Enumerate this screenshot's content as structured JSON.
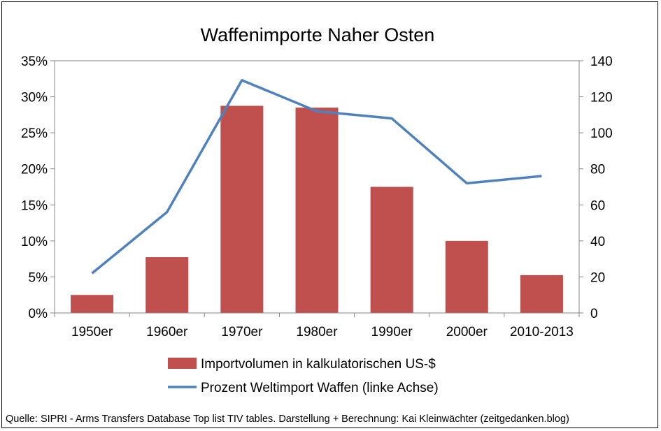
{
  "chart_data": {
    "type": "bar",
    "title": "Waffenimporte Naher Osten",
    "categories": [
      "1950er",
      "1960er",
      "1970er",
      "1980er",
      "1990er",
      "2000er",
      "2010-2013"
    ],
    "series": [
      {
        "name": "Importvolumen in kalkulatorischen US-$",
        "type": "bar",
        "axis": "right",
        "color": "#C0504D",
        "values": [
          10,
          31,
          115,
          114,
          70,
          40,
          21
        ]
      },
      {
        "name": "Prozent Weltimport Waffen (linke Achse)",
        "type": "line",
        "axis": "left",
        "color": "#4F81BD",
        "values": [
          5.5,
          14,
          32.3,
          28,
          27,
          18,
          19
        ]
      }
    ],
    "y_left": {
      "ylim": [
        0,
        35
      ],
      "ticks": [
        0,
        5,
        10,
        15,
        20,
        25,
        30,
        35
      ],
      "tick_labels": [
        "0%",
        "5%",
        "10%",
        "15%",
        "20%",
        "25%",
        "30%",
        "35%"
      ]
    },
    "y_right": {
      "ylim": [
        0,
        140
      ],
      "ticks": [
        0,
        20,
        40,
        60,
        80,
        100,
        120,
        140
      ],
      "tick_labels": [
        "0",
        "20",
        "40",
        "60",
        "80",
        "100",
        "120",
        "140"
      ]
    },
    "grid": false,
    "legend_position": "bottom"
  },
  "source_note": "Quelle: SIPRI - Arms Transfers Database Top list TIV tables. Darstellung + Berechnung: Kai Kleinwächter (zeitgedanken.blog)"
}
